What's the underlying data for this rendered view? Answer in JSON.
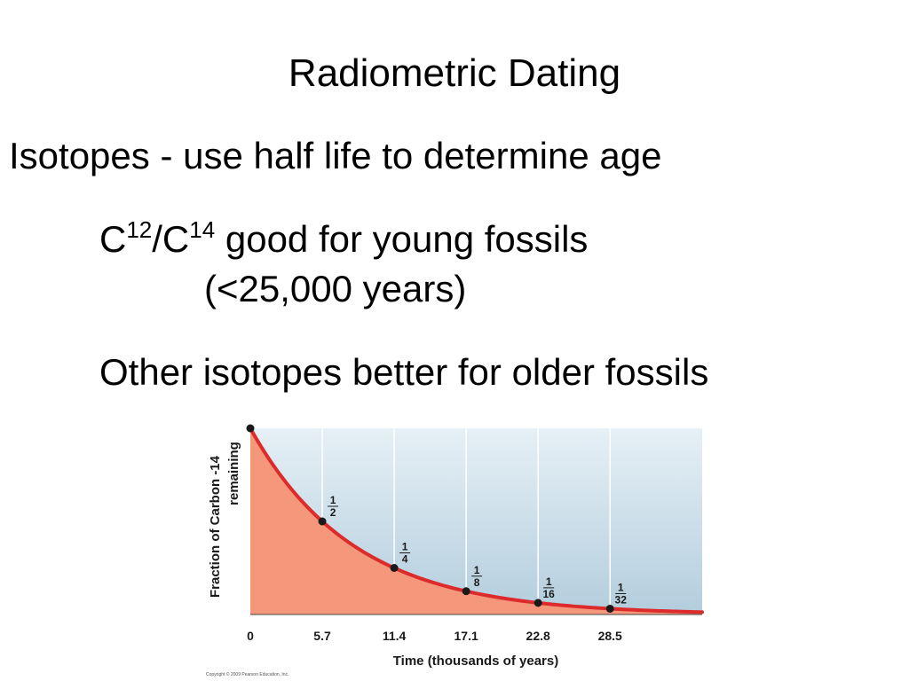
{
  "slide": {
    "title": "Radiometric Dating",
    "bullet1": "Isotopes - use half life to determine age",
    "bullet2": {
      "c": "C",
      "sup12": "12",
      "slash_c": "/C",
      "sup14": "14",
      "rest": " good for young fossils",
      "continuation": "(<25,000 years)"
    },
    "bullet3": "Other isotopes better for older fossils",
    "copyright": "Copyright © 2009 Pearson Education, Inc."
  },
  "colors": {
    "curve": "#dd2b2b",
    "fill": "#f4977a",
    "sky_top": "#e6f0f6",
    "sky_bottom": "#b3cddd",
    "point": "#1a1a1a",
    "gridline": "#ffffff"
  },
  "chart_data": {
    "type": "line",
    "title": "",
    "xlabel": "Time (thousands of years)",
    "ylabel": "Fraction of Carbon -14 remaining",
    "ylabel_lines": [
      "Fraction of Carbon -14",
      "remaining"
    ],
    "x_ticks": [
      0,
      5.7,
      11.4,
      17.1,
      22.8,
      28.5
    ],
    "x_tick_labels": [
      "0",
      "5.7",
      "11.4",
      "17.1",
      "22.8",
      "28.5"
    ],
    "xlim": [
      0,
      35.8
    ],
    "ylim": [
      0,
      1
    ],
    "grid": true,
    "series": [
      {
        "x": [
          0,
          5.7,
          11.4,
          17.1,
          22.8,
          28.5
        ],
        "y": [
          1,
          0.5,
          0.25,
          0.125,
          0.0625,
          0.03125
        ]
      }
    ],
    "annotations": [
      {
        "x": 5.7,
        "y": 0.5,
        "numerator": "1",
        "denominator": "2"
      },
      {
        "x": 11.4,
        "y": 0.25,
        "numerator": "1",
        "denominator": "4"
      },
      {
        "x": 17.1,
        "y": 0.125,
        "numerator": "1",
        "denominator": "8"
      },
      {
        "x": 22.8,
        "y": 0.0625,
        "numerator": "1",
        "denominator": "16"
      },
      {
        "x": 28.5,
        "y": 0.03125,
        "numerator": "1",
        "denominator": "32"
      }
    ]
  }
}
